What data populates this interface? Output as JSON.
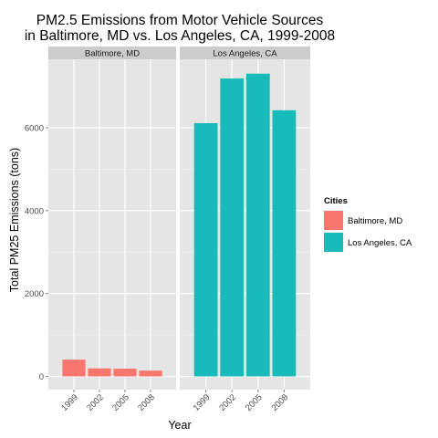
{
  "chart_data": {
    "type": "bar",
    "title_lines": [
      "PM2.5 Emissions from Motor Vehicle Sources",
      "in Baltimore, MD vs. Los Angeles, CA, 1999-2008"
    ],
    "xlabel": "Year",
    "ylabel": "Total PM25 Emissions (tons)",
    "categories": [
      "1999",
      "2002",
      "2005",
      "2008"
    ],
    "yticks": [
      0,
      2000,
      4000,
      6000
    ],
    "ylim": [
      -320,
      7650
    ],
    "facets": [
      {
        "label": "Baltimore, MD",
        "series": "Baltimore, MD",
        "values": [
          403.8,
          192.0,
          185.4,
          138.2
        ]
      },
      {
        "label": "Los Angeles, CA",
        "series": "Los Angeles, CA",
        "values": [
          6109.7,
          7188.7,
          7304.1,
          6421.0
        ]
      }
    ],
    "legend": {
      "title": "Cities",
      "position": "right",
      "items": [
        {
          "name": "Baltimore, MD",
          "color": "#F8766D"
        },
        {
          "name": "Los Angeles, CA",
          "color": "#19BABA"
        }
      ]
    },
    "grid": true,
    "panel_background": "#E5E5E5",
    "strip_background": "#CCCCCC"
  }
}
